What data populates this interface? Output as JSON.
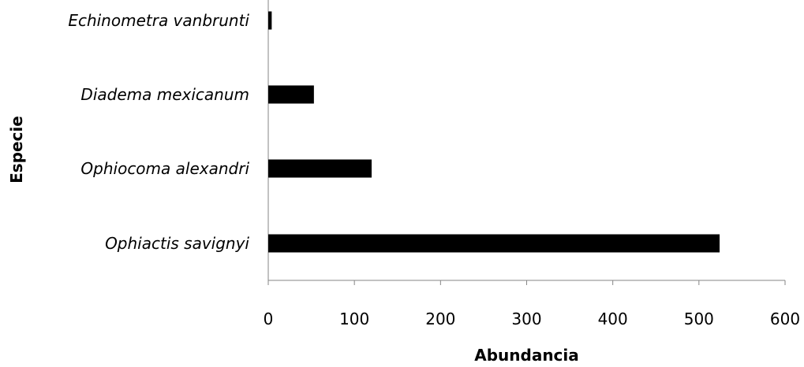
{
  "chart_data": {
    "type": "bar",
    "orientation": "horizontal",
    "categories": [
      "Echinometra vanbrunti",
      "Diadema mexicanum",
      "Ophiocoma alexandri",
      "Ophiactis savignyi"
    ],
    "values": [
      4,
      53,
      120,
      524
    ],
    "xlabel": "Abundancia",
    "ylabel": "Especie",
    "xlim": [
      0,
      600
    ],
    "xticks": [
      0,
      100,
      200,
      300,
      400,
      500,
      600
    ],
    "grid": false,
    "legend": "none",
    "colors": {
      "bar": "#000000",
      "axis": "#868686",
      "text": "#000000"
    }
  }
}
